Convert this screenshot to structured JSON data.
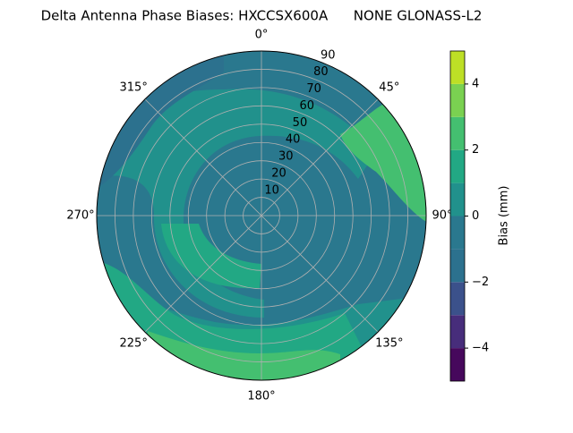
{
  "chart_data": {
    "type": "polar_contour",
    "title": "Delta Antenna Phase Biases: HXCCSX600A      NONE GLONASS-L2",
    "theta_ticks": [
      {
        "value": 0,
        "label": "0°"
      },
      {
        "value": 45,
        "label": "45°"
      },
      {
        "value": 90,
        "label": "90°"
      },
      {
        "value": 135,
        "label": "135°"
      },
      {
        "value": 180,
        "label": "180°"
      },
      {
        "value": 225,
        "label": "225°"
      },
      {
        "value": 270,
        "label": "270°"
      },
      {
        "value": 315,
        "label": "315°"
      }
    ],
    "rlim": [
      0,
      90
    ],
    "rticks": [
      10,
      20,
      30,
      40,
      50,
      60,
      70,
      80,
      90
    ],
    "grid": true,
    "colorbar": {
      "label": "Bias (mm)",
      "levels": [
        -5,
        -4,
        -3,
        -2,
        -1,
        0,
        1,
        2,
        3,
        4,
        5
      ],
      "colors": [
        "#46085c",
        "#472d7b",
        "#3b518b",
        "#2c718e",
        "#2a788e",
        "#21918c",
        "#22a884",
        "#44bf70",
        "#7ad151",
        "#bddf26"
      ],
      "ticks": [
        {
          "value": -4,
          "label": "−4"
        },
        {
          "value": -2,
          "label": "−2"
        },
        0,
        2,
        4
      ]
    }
  }
}
